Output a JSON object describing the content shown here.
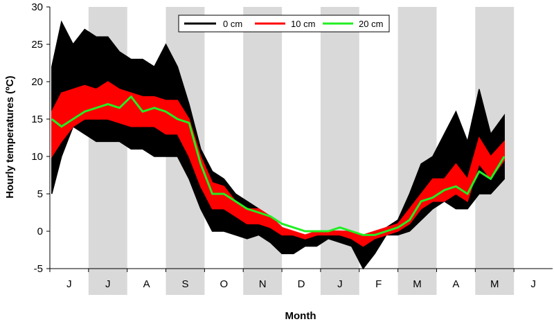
{
  "chart_data": {
    "type": "line",
    "title": "",
    "xlabel": "Month",
    "ylabel": "Hourly temperatures (ºC)",
    "ylim": [
      -5,
      30
    ],
    "yticks": [
      "-5",
      "0",
      "5",
      "10",
      "15",
      "20",
      "25",
      "30"
    ],
    "months": [
      "J",
      "J",
      "A",
      "S",
      "O",
      "N",
      "D",
      "J",
      "F",
      "M",
      "A",
      "M",
      "J"
    ],
    "x_unit": "months since start of record",
    "grid": false,
    "shaded_months": [
      1,
      3,
      5,
      7,
      9,
      11
    ],
    "legend": {
      "placement": "top-center"
    },
    "x": [
      0.05,
      0.3,
      0.6,
      0.9,
      1.2,
      1.5,
      1.8,
      2.1,
      2.4,
      2.7,
      3.0,
      3.3,
      3.6,
      3.9,
      4.2,
      4.5,
      4.8,
      5.1,
      5.4,
      5.7,
      6.0,
      6.3,
      6.6,
      6.9,
      7.2,
      7.5,
      7.8,
      8.1,
      8.4,
      8.7,
      9.0,
      9.3,
      9.6,
      9.9,
      10.2,
      10.5,
      10.8,
      11.1,
      11.4,
      11.75
    ],
    "series": [
      {
        "name": "0 cm",
        "color": "#000000",
        "values": [
          12,
          18,
          19,
          19,
          18,
          18,
          17,
          17,
          16.5,
          16.5,
          16,
          16,
          13,
          9,
          4,
          4,
          2.5,
          1.5,
          1.5,
          0.5,
          -1,
          -1.5,
          -1.5,
          -1,
          -0.5,
          -0.5,
          -1.5,
          -4,
          -2,
          0,
          0,
          2,
          4.5,
          6,
          7,
          7,
          6,
          10,
          9,
          11
        ],
        "min": [
          5,
          10,
          14,
          13,
          12,
          12,
          12,
          11,
          11,
          10,
          10,
          10,
          7,
          3,
          0,
          0,
          -0.5,
          -1,
          -0.5,
          -1.5,
          -3,
          -3,
          -2,
          -2,
          -1,
          -1.5,
          -2,
          -5,
          -3,
          -0.5,
          -0.5,
          0,
          1.5,
          3,
          4,
          3,
          3,
          5,
          5,
          7
        ],
        "max": [
          22,
          28,
          25,
          27,
          26,
          26,
          24,
          23,
          23,
          22,
          25,
          22,
          17,
          11,
          8,
          7,
          5,
          4,
          3,
          2,
          0.5,
          -0.5,
          -1,
          -0.5,
          0,
          0,
          -0.5,
          -1.5,
          -0.5,
          0.5,
          1.5,
          5,
          9,
          10,
          13,
          16,
          12,
          19,
          13,
          15.5
        ]
      },
      {
        "name": "10 cm",
        "color": "#ff0000",
        "values": [
          12,
          16,
          17,
          17.5,
          17,
          17,
          16.5,
          16.5,
          16,
          16,
          15.5,
          15.5,
          13,
          8.5,
          4.5,
          4.5,
          3,
          2,
          2,
          1,
          0,
          -0.5,
          -1,
          -0.5,
          0,
          0,
          -0.5,
          -1.5,
          -0.5,
          0,
          0.5,
          2,
          4,
          5.5,
          5.5,
          7,
          5.5,
          11,
          8.5,
          11
        ],
        "min": [
          10,
          12,
          14,
          15,
          15,
          15,
          14.5,
          14,
          14,
          14,
          13,
          13,
          10,
          6,
          3,
          3,
          2,
          1,
          1,
          0.5,
          -0.5,
          -0.5,
          -1,
          -0.5,
          -0.5,
          -0.5,
          -1,
          -2,
          -1,
          -0.5,
          0,
          1,
          3,
          4,
          4,
          5,
          4,
          9,
          7,
          9.5
        ],
        "max": [
          16,
          18.5,
          19,
          19.5,
          19,
          20,
          19,
          18.5,
          18,
          18,
          17.5,
          17.5,
          15,
          10,
          6.5,
          6,
          4,
          3,
          3,
          2,
          0.5,
          0,
          -0.5,
          0,
          0,
          0,
          0,
          -0.5,
          0,
          0.5,
          1,
          3,
          5,
          7,
          7,
          9,
          7,
          12.5,
          10,
          12
        ]
      },
      {
        "name": "20 cm",
        "color": "#22ee22",
        "values": [
          15,
          14,
          15,
          16,
          16.5,
          17,
          16.5,
          18,
          16,
          16.5,
          16,
          15,
          14.5,
          9,
          5,
          5,
          4,
          3,
          2.5,
          2,
          1,
          0.5,
          0,
          0,
          0,
          0.5,
          0,
          -0.5,
          -0.5,
          0,
          0.5,
          1.5,
          4,
          4.5,
          5.5,
          6,
          5,
          8,
          7,
          10
        ]
      }
    ]
  }
}
